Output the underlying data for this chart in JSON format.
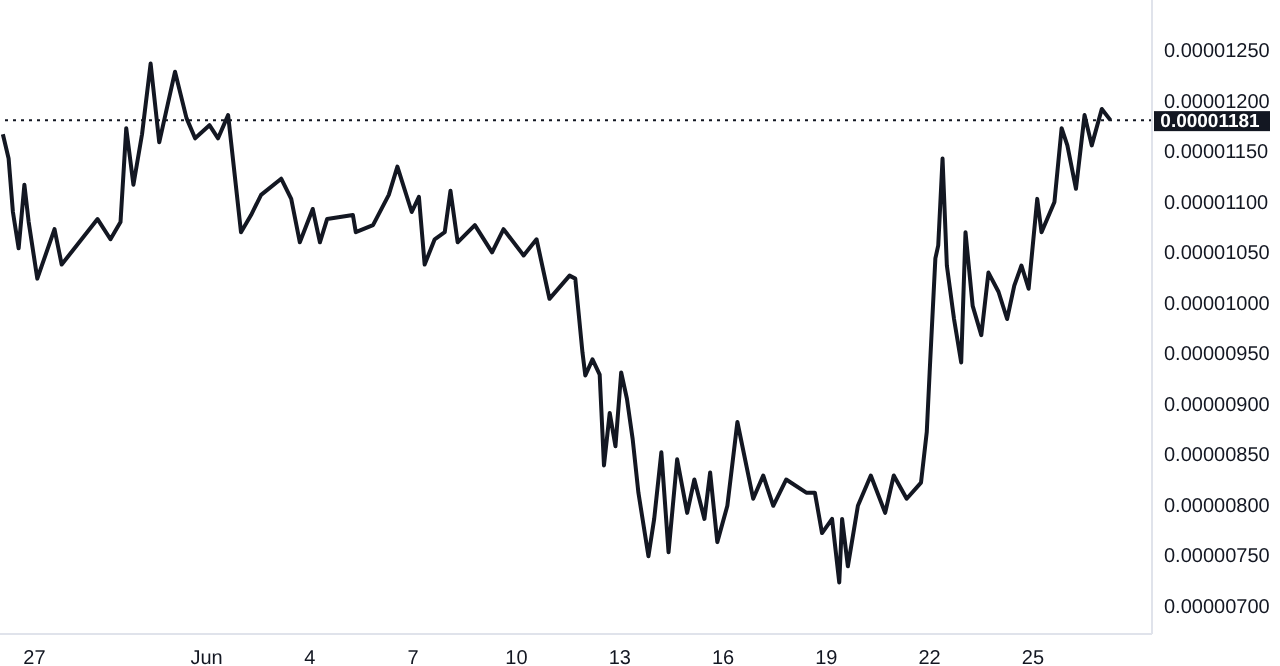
{
  "chart_data": {
    "type": "line",
    "x": [
      "--05-26T02:00",
      "--05-26T06:00",
      "--05-26T09:00",
      "--05-26T13:00",
      "--05-26T17:00",
      "--05-26T20:00",
      "--05-27T02:00",
      "--05-27T14:00",
      "--05-27T19:00",
      "--05-28T20:00",
      "--05-29T05:00",
      "--05-29T12:00",
      "--05-29T16:00",
      "--05-29T21:00",
      "--05-30T03:00",
      "--05-30T09:00",
      "--05-30T15:00",
      "--05-31T02:00",
      "--05-31T10:00",
      "--05-31T16:00",
      "--06-01T02:00",
      "--06-01T08:00",
      "--06-01T15:00",
      "--06-02T00:00",
      "--06-02T07:00",
      "--06-02T14:00",
      "--06-03T04:00",
      "--06-03T11:00",
      "--06-03T17:00",
      "--06-04T02:00",
      "--06-04T07:00",
      "--06-04T12:00",
      "--06-05T06:00",
      "--06-05T08:00",
      "--06-05T20:00",
      "--06-06T07:00",
      "--06-06T13:00",
      "--06-06T23:00",
      "--06-07T04:00",
      "--06-07T08:00",
      "--06-07T15:00",
      "--06-07T22:00",
      "--06-08T02:00",
      "--06-08T07:00",
      "--06-08T19:00",
      "--06-09T07:00",
      "--06-09T15:00",
      "--06-10T05:00",
      "--06-10T14:00",
      "--06-10T23:00",
      "--06-11T13:00",
      "--06-11T17:00",
      "--06-11T22:00",
      "--06-12T00:00",
      "--06-12T05:00",
      "--06-12T10:00",
      "--06-12T13:00",
      "--06-12T17:00",
      "--06-12T21:00",
      "--06-13T01:00",
      "--06-13T05:00",
      "--06-13T09:00",
      "--06-13T13:00",
      "--06-13T20:00",
      "--06-14T00:00",
      "--06-14T05:00",
      "--06-14T10:00",
      "--06-14T16:00",
      "--06-14T23:00",
      "--06-15T04:00",
      "--06-15T11:00",
      "--06-15T15:00",
      "--06-15T20:00",
      "--06-16T03:00",
      "--06-16T10:00",
      "--06-16T21:00",
      "--06-17T04:00",
      "--06-17T11:00",
      "--06-17T20:00",
      "--06-18T10:00",
      "--06-18T16:00",
      "--06-18T21:00",
      "--06-19T04:00",
      "--06-19T09:00",
      "--06-19T11:00",
      "--06-19T15:00",
      "--06-19T22:00",
      "--06-20T07:00",
      "--06-20T17:00",
      "--06-20T23:00",
      "--06-21T08:00",
      "--06-21T18:00",
      "--06-21T22:00",
      "--06-22T00:00",
      "--06-22T04:00",
      "--06-22T06:00",
      "--06-22T09:00",
      "--06-22T12:00",
      "--06-22T17:00",
      "--06-22T22:00",
      "--06-23T01:00",
      "--06-23T06:00",
      "--06-23T12:00",
      "--06-23T17:00",
      "--06-24T00:00",
      "--06-24T06:00",
      "--06-24T11:00",
      "--06-24T16:00",
      "--06-24T21:00",
      "--06-25T03:00",
      "--06-25T06:00",
      "--06-25T15:00",
      "--06-25T20:00",
      "--06-26T00:00",
      "--06-26T06:00",
      "--06-26T12:00",
      "--06-26T17:00",
      "--06-27T00:00",
      "--06-27T06:00"
    ],
    "series": [
      {
        "color": "#131722",
        "values": [
          1.167e-05,
          1.143e-05,
          1.09e-05,
          1.054e-05,
          1.117e-05,
          1.08e-05,
          1.024e-05,
          1.073e-05,
          1.038e-05,
          1.083e-05,
          1.063e-05,
          1.08e-05,
          1.173e-05,
          1.117e-05,
          1.167e-05,
          1.237e-05,
          1.159e-05,
          1.229e-05,
          1.183e-05,
          1.163e-05,
          1.176e-05,
          1.163e-05,
          1.186e-05,
          1.07e-05,
          1.087e-05,
          1.107e-05,
          1.123e-05,
          1.103e-05,
          1.06e-05,
          1.093e-05,
          1.06e-05,
          1.083e-05,
          1.087e-05,
          1.07e-05,
          1.077e-05,
          1.107e-05,
          1.135e-05,
          1.09e-05,
          1.105e-05,
          1.038e-05,
          1.063e-05,
          1.07e-05,
          1.111e-05,
          1.06e-05,
          1.077e-05,
          1.05e-05,
          1.073e-05,
          1.047e-05,
          1.063e-05,
          1.004e-05,
          1.027e-05,
          1.024e-05,
          9.51e-06,
          9.28e-06,
          9.44e-06,
          9.29e-06,
          8.39e-06,
          8.91e-06,
          8.58e-06,
          9.31e-06,
          9.05e-06,
          8.65e-06,
          8.12e-06,
          7.49e-06,
          7.86e-06,
          8.52e-06,
          7.53e-06,
          8.45e-06,
          7.92e-06,
          8.25e-06,
          7.86e-06,
          8.32e-06,
          7.63e-06,
          7.99e-06,
          8.82e-06,
          8.06e-06,
          8.29e-06,
          7.99e-06,
          8.25e-06,
          8.12e-06,
          8.12e-06,
          7.72e-06,
          7.86e-06,
          7.23e-06,
          7.86e-06,
          7.39e-06,
          7.99e-06,
          8.29e-06,
          7.92e-06,
          8.29e-06,
          8.06e-06,
          8.22e-06,
          8.72e-06,
          9.31e-06,
          1.044e-05,
          1.057e-05,
          1.143e-05,
          1.037e-05,
          9.84e-06,
          9.41e-06,
          1.07e-05,
          9.97e-06,
          9.68e-06,
          1.03e-05,
          1.011e-05,
          9.84e-06,
          1.017e-05,
          1.037e-05,
          1.014e-05,
          1.103e-05,
          1.07e-05,
          1.1e-05,
          1.173e-05,
          1.156e-05,
          1.113e-05,
          1.186e-05,
          1.156e-05,
          1.192e-05,
          1.181e-05
        ]
      }
    ],
    "xlim": [
      "--05-26T00:00",
      "--06-28T11:00"
    ],
    "xticks": [
      {
        "value": "--05-27",
        "label": "27"
      },
      {
        "value": "--06-01",
        "label": "Jun"
      },
      {
        "value": "--06-04",
        "label": "4"
      },
      {
        "value": "--06-07",
        "label": "7"
      },
      {
        "value": "--06-10",
        "label": "10"
      },
      {
        "value": "--06-13",
        "label": "13"
      },
      {
        "value": "--06-16",
        "label": "16"
      },
      {
        "value": "--06-19",
        "label": "19"
      },
      {
        "value": "--06-22",
        "label": "22"
      },
      {
        "value": "--06-25",
        "label": "25"
      }
    ],
    "ylim": [
      6.72e-06,
      1.3e-05
    ],
    "yticks": [
      {
        "value": 7e-06,
        "label": "0.00000700"
      },
      {
        "value": 7.5e-06,
        "label": "0.00000750"
      },
      {
        "value": 8e-06,
        "label": "0.00000800"
      },
      {
        "value": 8.5e-06,
        "label": "0.00000850"
      },
      {
        "value": 9e-06,
        "label": "0.00000900"
      },
      {
        "value": 9.5e-06,
        "label": "0.00000950"
      },
      {
        "value": 1e-05,
        "label": "0.00001000"
      },
      {
        "value": 1.05e-05,
        "label": "0.00001050"
      },
      {
        "value": 1.1e-05,
        "label": "0.00001100"
      },
      {
        "value": 1.15e-05,
        "label": "0.00001150"
      },
      {
        "value": 1.2e-05,
        "label": "0.00001200"
      },
      {
        "value": 1.25e-05,
        "label": "0.00001250"
      }
    ],
    "ref_lines": [
      {
        "axis": "y",
        "value": 1.181e-05,
        "label": "0.00001181",
        "color": "#131722",
        "line_style": "dotted"
      }
    ],
    "grid": false,
    "legend": false,
    "marker": "none",
    "line_style": "solid"
  }
}
